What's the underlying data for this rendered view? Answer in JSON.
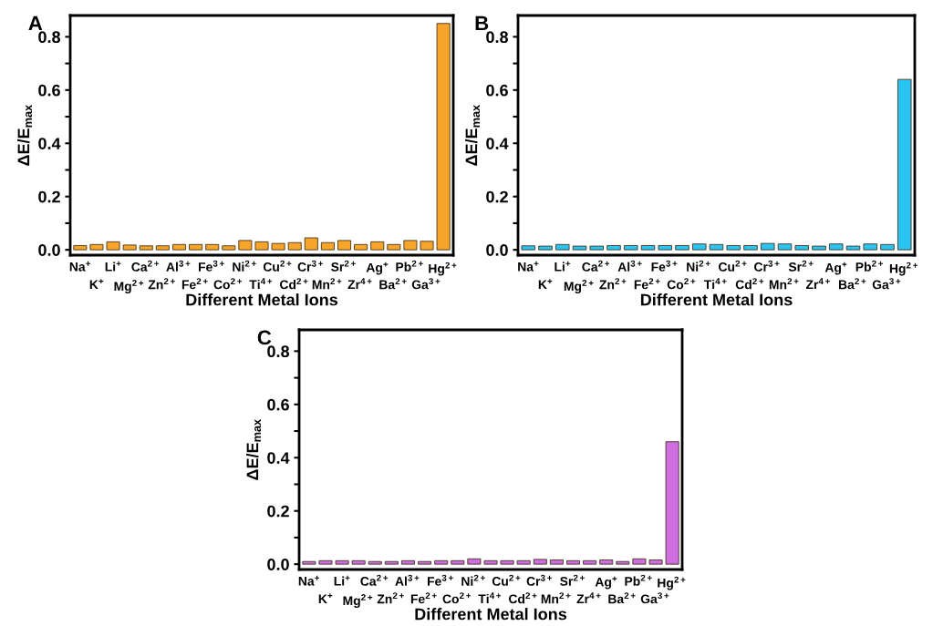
{
  "chart_data": [
    {
      "type": "bar",
      "title": "A",
      "xlabel": "Different Metal Ions",
      "ylabel": "ΔE/E$_{max}$",
      "categories": [
        "Na$^{+}$",
        "K$^{+}$",
        "Li$^{+}$",
        "Mg$^{2+}$",
        "Ca$^{2+}$",
        "Zn$^{2+}$",
        "Al$^{3+}$",
        "Fe$^{2+}$",
        "Fe$^{3+}$",
        "Co$^{2+}$",
        "Ni$^{2+}$",
        "Ti$^{4+}$",
        "Cu$^{2+}$",
        "Cd$^{2+}$",
        "Cr$^{3+}$",
        "Mn$^{2+}$",
        "Sr$^{2+}$",
        "Zr$^{4+}$",
        "Ag$^{+}$",
        "Ba$^{2+}$",
        "Pb$^{2+}$",
        "Ga$^{3+}$",
        "Hg$^{2+}$"
      ],
      "values": [
        0.016,
        0.02,
        0.03,
        0.018,
        0.015,
        0.015,
        0.02,
        0.02,
        0.02,
        0.015,
        0.035,
        0.03,
        0.024,
        0.027,
        0.045,
        0.027,
        0.035,
        0.02,
        0.03,
        0.02,
        0.035,
        0.032,
        0.85
      ],
      "color": "#f7a52a",
      "ylim": [
        -0.02,
        0.88
      ],
      "yticks": [
        {
          "value": 0.0,
          "label": "0.0"
        },
        {
          "value": 0.1,
          "label": null
        },
        {
          "value": 0.2,
          "label": "0.2"
        },
        {
          "value": 0.3,
          "label": null
        },
        {
          "value": 0.4,
          "label": "0.4"
        },
        {
          "value": 0.5,
          "label": null
        },
        {
          "value": 0.6,
          "label": "0.6"
        },
        {
          "value": 0.7,
          "label": null
        },
        {
          "value": 0.8,
          "label": "0.8"
        }
      ],
      "grid": false,
      "legend": false
    },
    {
      "type": "bar",
      "title": "B",
      "xlabel": "Different Metal Ions",
      "ylabel": "ΔE/E$_{max}$",
      "categories": [
        "Na$^{+}$",
        "K$^{+}$",
        "Li$^{+}$",
        "Mg$^{2+}$",
        "Ca$^{2+}$",
        "Zn$^{2+}$",
        "Al$^{3+}$",
        "Fe$^{2+}$",
        "Fe$^{3+}$",
        "Co$^{2+}$",
        "Ni$^{2+}$",
        "Ti$^{4+}$",
        "Cu$^{2+}$",
        "Cd$^{2+}$",
        "Cr$^{3+}$",
        "Mn$^{2+}$",
        "Sr$^{2+}$",
        "Zr$^{4+}$",
        "Ag$^{+}$",
        "Ba$^{2+}$",
        "Pb$^{2+}$",
        "Ga$^{3+}$",
        "Hg$^{2+}$"
      ],
      "values": [
        0.015,
        0.014,
        0.02,
        0.014,
        0.014,
        0.016,
        0.016,
        0.016,
        0.016,
        0.016,
        0.022,
        0.02,
        0.016,
        0.016,
        0.024,
        0.022,
        0.016,
        0.014,
        0.022,
        0.014,
        0.022,
        0.02,
        0.64
      ],
      "color": "#2bc3f2",
      "ylim": [
        -0.02,
        0.88
      ],
      "yticks": [
        {
          "value": 0.0,
          "label": "0.0"
        },
        {
          "value": 0.1,
          "label": null
        },
        {
          "value": 0.2,
          "label": "0.2"
        },
        {
          "value": 0.3,
          "label": null
        },
        {
          "value": 0.4,
          "label": "0.4"
        },
        {
          "value": 0.5,
          "label": null
        },
        {
          "value": 0.6,
          "label": "0.6"
        },
        {
          "value": 0.7,
          "label": null
        },
        {
          "value": 0.8,
          "label": "0.8"
        }
      ],
      "grid": false,
      "legend": false
    },
    {
      "type": "bar",
      "title": "C",
      "xlabel": "Different Metal Ions",
      "ylabel": "ΔE/E$_{max}$",
      "categories": [
        "Na$^{+}$",
        "K$^{+}$",
        "Li$^{+}$",
        "Mg$^{2+}$",
        "Ca$^{2+}$",
        "Zn$^{2+}$",
        "Al$^{3+}$",
        "Fe$^{2+}$",
        "Fe$^{3+}$",
        "Co$^{2+}$",
        "Ni$^{2+}$",
        "Ti$^{4+}$",
        "Cu$^{2+}$",
        "Cd$^{2+}$",
        "Cr$^{3+}$",
        "Mn$^{2+}$",
        "Sr$^{2+}$",
        "Zr$^{4+}$",
        "Ag$^{+}$",
        "Ba$^{2+}$",
        "Pb$^{2+}$",
        "Ga$^{3+}$",
        "Hg$^{2+}$"
      ],
      "values": [
        0.01,
        0.013,
        0.013,
        0.013,
        0.01,
        0.01,
        0.013,
        0.01,
        0.013,
        0.013,
        0.02,
        0.013,
        0.013,
        0.013,
        0.018,
        0.016,
        0.013,
        0.013,
        0.016,
        0.01,
        0.02,
        0.016,
        0.46
      ],
      "color": "#cf6ee0",
      "ylim": [
        -0.02,
        0.88
      ],
      "yticks": [
        {
          "value": 0.0,
          "label": "0.0"
        },
        {
          "value": 0.1,
          "label": null
        },
        {
          "value": 0.2,
          "label": "0.2"
        },
        {
          "value": 0.3,
          "label": null
        },
        {
          "value": 0.4,
          "label": "0.4"
        },
        {
          "value": 0.5,
          "label": null
        },
        {
          "value": 0.6,
          "label": "0.6"
        },
        {
          "value": 0.7,
          "label": null
        },
        {
          "value": 0.8,
          "label": "0.8"
        }
      ],
      "grid": false,
      "legend": false
    }
  ]
}
